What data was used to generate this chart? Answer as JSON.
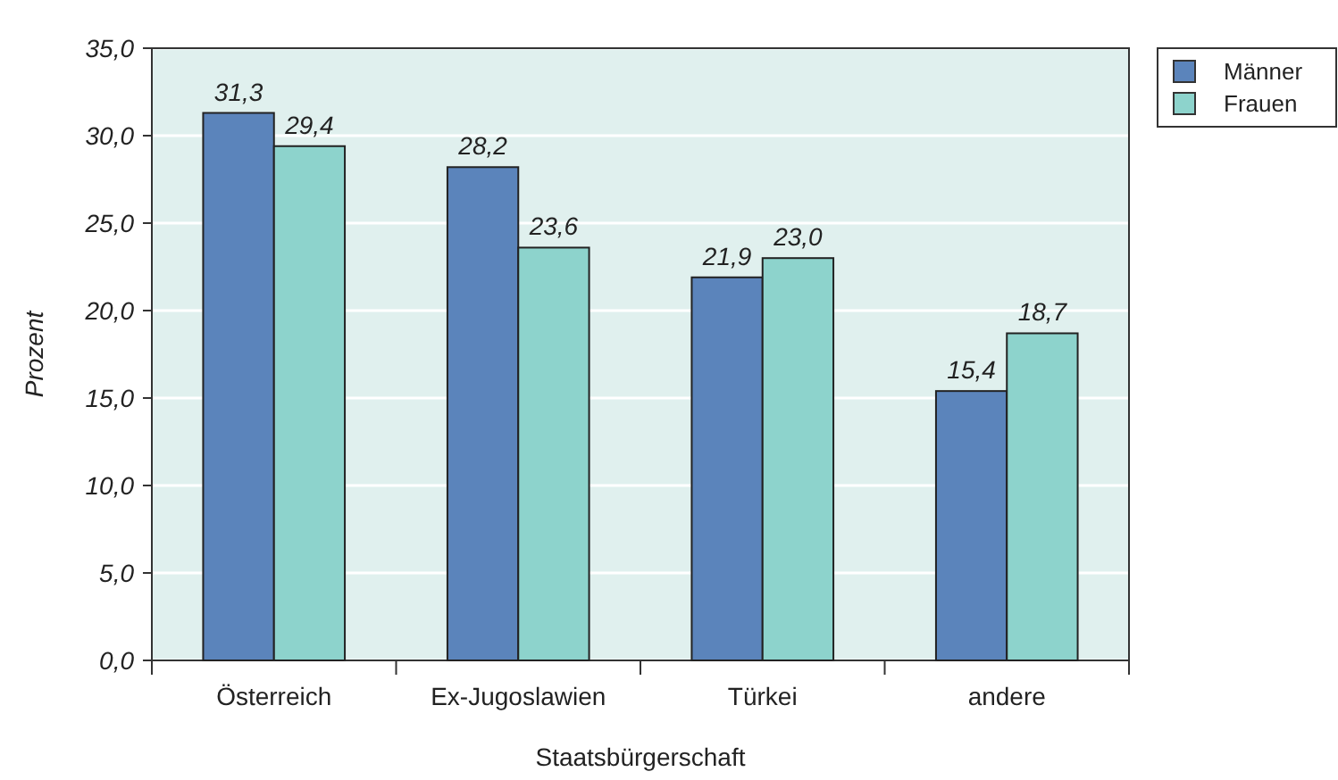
{
  "chart_data": {
    "type": "bar",
    "xlabel": "Staatsbürgerschaft",
    "ylabel": "Prozent",
    "categories": [
      "Österreich",
      "Ex-Jugoslawien",
      "Türkei",
      "andere"
    ],
    "series": [
      {
        "name": "Männer",
        "color": "#5b84bb",
        "values": [
          31.3,
          28.2,
          21.9,
          15.4
        ],
        "value_labels": [
          "31,3",
          "28,2",
          "21,9",
          "15,4"
        ]
      },
      {
        "name": "Frauen",
        "color": "#8dd3cc",
        "values": [
          29.4,
          23.6,
          23.0,
          18.7
        ],
        "value_labels": [
          "29,4",
          "23,6",
          "23,0",
          "18,7"
        ]
      }
    ],
    "ylim": [
      0,
      35
    ],
    "yticks": [
      {
        "value": 0,
        "label": "0,0"
      },
      {
        "value": 5,
        "label": "5,0"
      },
      {
        "value": 10,
        "label": "10,0"
      },
      {
        "value": 15,
        "label": "15,0"
      },
      {
        "value": 20,
        "label": "20,0"
      },
      {
        "value": 25,
        "label": "25,0"
      },
      {
        "value": 30,
        "label": "30,0"
      },
      {
        "value": 35,
        "label": "35,0"
      }
    ],
    "grid": "y",
    "legend": "top right"
  }
}
